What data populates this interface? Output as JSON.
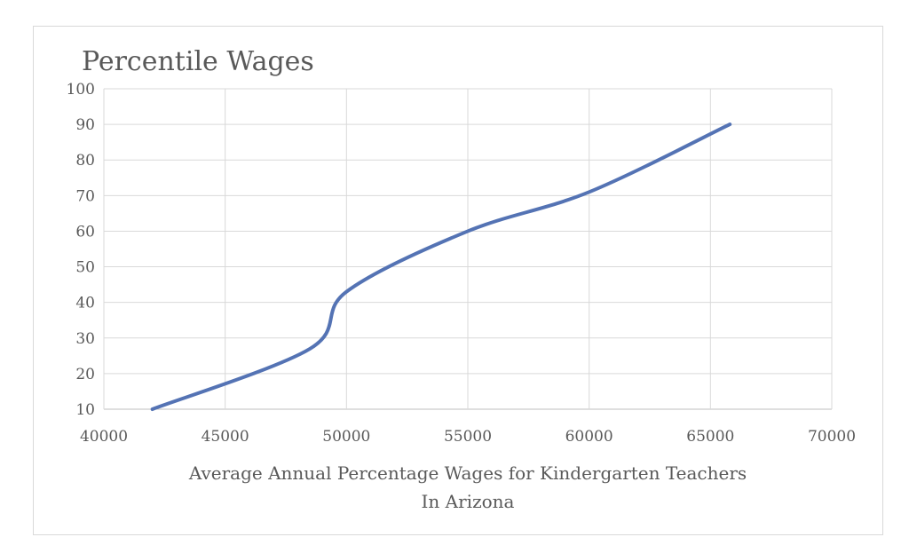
{
  "chart_data": {
    "type": "line",
    "title": "Percentile Wages",
    "xlabel": [
      "Average Annual Percentage Wages for Kindergarten  Teachers",
      "In Arizona"
    ],
    "ylabel": "",
    "xlim": [
      40000,
      70000
    ],
    "ylim": [
      10,
      100
    ],
    "xticks": [
      40000,
      45000,
      50000,
      55000,
      60000,
      65000,
      70000
    ],
    "yticks": [
      10,
      20,
      30,
      40,
      50,
      60,
      70,
      80,
      90,
      100
    ],
    "grid": true,
    "series": [
      {
        "name": "Percentile Wages",
        "color": "#5473b4",
        "x": [
          42000,
          48500,
          50000,
          55000,
          60000,
          65800
        ],
        "y": [
          10,
          27,
          43,
          60,
          71,
          90
        ]
      }
    ]
  }
}
